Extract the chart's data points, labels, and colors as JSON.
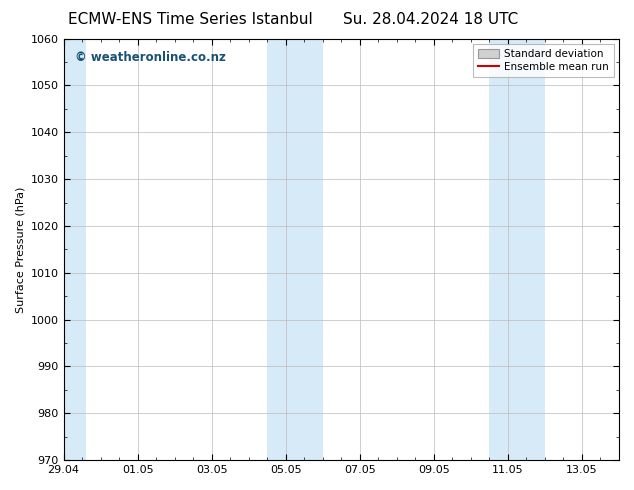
{
  "title_left": "ECMW-ENS Time Series Istanbul",
  "title_right": "Su. 28.04.2024 18 UTC",
  "ylabel": "Surface Pressure (hPa)",
  "ylim": [
    970,
    1060
  ],
  "yticks": [
    970,
    980,
    990,
    1000,
    1010,
    1020,
    1030,
    1040,
    1050,
    1060
  ],
  "xtick_labels": [
    "29.04",
    "01.05",
    "03.05",
    "05.05",
    "07.05",
    "09.05",
    "11.05",
    "13.05"
  ],
  "xtick_positions": [
    0,
    2,
    4,
    6,
    8,
    10,
    12,
    14
  ],
  "xlim": [
    0,
    15
  ],
  "shaded_regions": [
    {
      "start": -0.1,
      "end": 0.6
    },
    {
      "start": 5.5,
      "end": 7.0
    },
    {
      "start": 11.5,
      "end": 13.0
    }
  ],
  "shaded_color": "#d6eaf8",
  "watermark_text": "© weatheronline.co.nz",
  "watermark_color": "#1a5276",
  "background_color": "#ffffff",
  "plot_bg_color": "#ffffff",
  "grid_color": "#bbbbbb",
  "legend_std_color": "#d0d0d0",
  "legend_std_edge": "#999999",
  "legend_mean_color": "#cc0000",
  "title_fontsize": 11,
  "axis_label_fontsize": 8,
  "tick_fontsize": 8,
  "watermark_fontsize": 8.5
}
